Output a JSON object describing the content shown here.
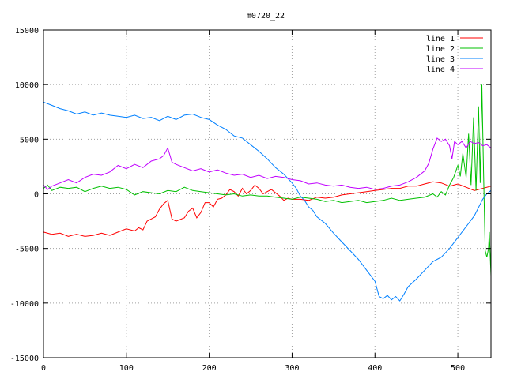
{
  "chart_data": {
    "type": "line",
    "title": "m0720_22",
    "xlabel": "",
    "ylabel": "",
    "xlim": [
      0,
      540
    ],
    "ylim": [
      -15000,
      15000
    ],
    "grid": true,
    "legend_position": "top-right",
    "x_ticks": [
      0,
      100,
      200,
      300,
      400,
      500
    ],
    "x_tick_labels": [
      "0",
      "100",
      "200",
      "300",
      "400",
      "500"
    ],
    "y_ticks": [
      -15000,
      -10000,
      -5000,
      0,
      5000,
      10000,
      15000
    ],
    "y_tick_labels": [
      "-15000",
      "-10000",
      "-5000",
      "0",
      "5000",
      "10000",
      "15000"
    ],
    "series": [
      {
        "name": "line 1",
        "color": "#ff0000",
        "points": [
          [
            0,
            -3500
          ],
          [
            10,
            -3700
          ],
          [
            20,
            -3600
          ],
          [
            30,
            -3900
          ],
          [
            40,
            -3700
          ],
          [
            50,
            -3900
          ],
          [
            60,
            -3800
          ],
          [
            70,
            -3600
          ],
          [
            80,
            -3800
          ],
          [
            90,
            -3500
          ],
          [
            100,
            -3200
          ],
          [
            110,
            -3400
          ],
          [
            115,
            -3100
          ],
          [
            120,
            -3300
          ],
          [
            125,
            -2500
          ],
          [
            130,
            -2300
          ],
          [
            135,
            -2100
          ],
          [
            140,
            -1400
          ],
          [
            145,
            -900
          ],
          [
            150,
            -600
          ],
          [
            155,
            -2300
          ],
          [
            160,
            -2500
          ],
          [
            170,
            -2200
          ],
          [
            175,
            -1600
          ],
          [
            180,
            -1300
          ],
          [
            185,
            -2200
          ],
          [
            190,
            -1700
          ],
          [
            195,
            -800
          ],
          [
            200,
            -800
          ],
          [
            205,
            -1200
          ],
          [
            210,
            -500
          ],
          [
            215,
            -400
          ],
          [
            220,
            -100
          ],
          [
            225,
            400
          ],
          [
            230,
            200
          ],
          [
            235,
            -200
          ],
          [
            240,
            500
          ],
          [
            245,
            0
          ],
          [
            250,
            300
          ],
          [
            255,
            800
          ],
          [
            260,
            500
          ],
          [
            265,
            0
          ],
          [
            270,
            200
          ],
          [
            275,
            400
          ],
          [
            280,
            100
          ],
          [
            285,
            -200
          ],
          [
            290,
            -600
          ],
          [
            295,
            -400
          ],
          [
            300,
            -500
          ],
          [
            310,
            -500
          ],
          [
            320,
            -600
          ],
          [
            330,
            -300
          ],
          [
            340,
            -400
          ],
          [
            350,
            -300
          ],
          [
            360,
            -100
          ],
          [
            370,
            0
          ],
          [
            380,
            100
          ],
          [
            390,
            200
          ],
          [
            400,
            300
          ],
          [
            410,
            400
          ],
          [
            420,
            500
          ],
          [
            430,
            500
          ],
          [
            440,
            700
          ],
          [
            450,
            700
          ],
          [
            460,
            900
          ],
          [
            470,
            1100
          ],
          [
            480,
            1000
          ],
          [
            490,
            700
          ],
          [
            500,
            900
          ],
          [
            510,
            600
          ],
          [
            520,
            300
          ],
          [
            530,
            500
          ],
          [
            540,
            700
          ]
        ]
      },
      {
        "name": "line 2",
        "color": "#00c000",
        "points": [
          [
            0,
            500
          ],
          [
            5,
            800
          ],
          [
            10,
            300
          ],
          [
            20,
            600
          ],
          [
            30,
            500
          ],
          [
            40,
            600
          ],
          [
            50,
            200
          ],
          [
            60,
            500
          ],
          [
            70,
            700
          ],
          [
            80,
            500
          ],
          [
            90,
            600
          ],
          [
            100,
            400
          ],
          [
            110,
            -100
          ],
          [
            120,
            200
          ],
          [
            130,
            100
          ],
          [
            140,
            0
          ],
          [
            150,
            300
          ],
          [
            160,
            200
          ],
          [
            170,
            600
          ],
          [
            180,
            300
          ],
          [
            190,
            200
          ],
          [
            200,
            100
          ],
          [
            210,
            0
          ],
          [
            220,
            -100
          ],
          [
            230,
            0
          ],
          [
            240,
            -200
          ],
          [
            250,
            -100
          ],
          [
            260,
            -200
          ],
          [
            270,
            -200
          ],
          [
            280,
            -300
          ],
          [
            290,
            -400
          ],
          [
            300,
            -500
          ],
          [
            310,
            -300
          ],
          [
            320,
            -400
          ],
          [
            330,
            -500
          ],
          [
            340,
            -700
          ],
          [
            350,
            -600
          ],
          [
            360,
            -800
          ],
          [
            370,
            -700
          ],
          [
            380,
            -600
          ],
          [
            390,
            -800
          ],
          [
            400,
            -700
          ],
          [
            410,
            -600
          ],
          [
            420,
            -400
          ],
          [
            430,
            -600
          ],
          [
            440,
            -500
          ],
          [
            450,
            -400
          ],
          [
            460,
            -300
          ],
          [
            470,
            0
          ],
          [
            475,
            -300
          ],
          [
            480,
            200
          ],
          [
            485,
            -100
          ],
          [
            490,
            800
          ],
          [
            495,
            1500
          ],
          [
            500,
            2600
          ],
          [
            503,
            1600
          ],
          [
            506,
            3700
          ],
          [
            510,
            1500
          ],
          [
            513,
            5500
          ],
          [
            516,
            800
          ],
          [
            519,
            7000
          ],
          [
            522,
            300
          ],
          [
            525,
            8000
          ],
          [
            527,
            1000
          ],
          [
            529,
            10000
          ],
          [
            531,
            2000
          ],
          [
            533,
            -5200
          ],
          [
            535,
            -5800
          ],
          [
            537,
            -5000
          ],
          [
            538,
            -3500
          ],
          [
            540,
            -7500
          ]
        ]
      },
      {
        "name": "line 3",
        "color": "#0080ff",
        "points": [
          [
            0,
            8400
          ],
          [
            10,
            8100
          ],
          [
            20,
            7800
          ],
          [
            30,
            7600
          ],
          [
            40,
            7300
          ],
          [
            50,
            7500
          ],
          [
            60,
            7200
          ],
          [
            70,
            7400
          ],
          [
            80,
            7200
          ],
          [
            90,
            7100
          ],
          [
            100,
            7000
          ],
          [
            110,
            7200
          ],
          [
            120,
            6900
          ],
          [
            130,
            7000
          ],
          [
            140,
            6700
          ],
          [
            150,
            7100
          ],
          [
            160,
            6800
          ],
          [
            170,
            7200
          ],
          [
            180,
            7300
          ],
          [
            190,
            7000
          ],
          [
            200,
            6800
          ],
          [
            210,
            6300
          ],
          [
            220,
            5900
          ],
          [
            230,
            5300
          ],
          [
            240,
            5100
          ],
          [
            250,
            4500
          ],
          [
            260,
            3900
          ],
          [
            270,
            3200
          ],
          [
            280,
            2400
          ],
          [
            290,
            1800
          ],
          [
            300,
            1000
          ],
          [
            305,
            500
          ],
          [
            310,
            -200
          ],
          [
            315,
            -600
          ],
          [
            320,
            -1200
          ],
          [
            325,
            -1500
          ],
          [
            330,
            -2100
          ],
          [
            340,
            -2700
          ],
          [
            350,
            -3600
          ],
          [
            360,
            -4400
          ],
          [
            370,
            -5200
          ],
          [
            380,
            -6000
          ],
          [
            390,
            -7000
          ],
          [
            400,
            -8000
          ],
          [
            405,
            -9400
          ],
          [
            410,
            -9600
          ],
          [
            415,
            -9300
          ],
          [
            420,
            -9700
          ],
          [
            425,
            -9400
          ],
          [
            430,
            -9800
          ],
          [
            435,
            -9200
          ],
          [
            440,
            -8500
          ],
          [
            450,
            -7800
          ],
          [
            460,
            -7000
          ],
          [
            470,
            -6200
          ],
          [
            480,
            -5800
          ],
          [
            490,
            -5000
          ],
          [
            500,
            -4000
          ],
          [
            510,
            -3000
          ],
          [
            520,
            -2000
          ],
          [
            530,
            -500
          ],
          [
            535,
            0
          ],
          [
            540,
            300
          ]
        ]
      },
      {
        "name": "line 4",
        "color": "#c000ff",
        "points": [
          [
            0,
            800
          ],
          [
            5,
            400
          ],
          [
            10,
            700
          ],
          [
            20,
            1000
          ],
          [
            30,
            1300
          ],
          [
            40,
            1000
          ],
          [
            50,
            1500
          ],
          [
            60,
            1800
          ],
          [
            70,
            1700
          ],
          [
            80,
            2000
          ],
          [
            90,
            2600
          ],
          [
            100,
            2300
          ],
          [
            110,
            2700
          ],
          [
            120,
            2400
          ],
          [
            130,
            3000
          ],
          [
            140,
            3200
          ],
          [
            145,
            3500
          ],
          [
            150,
            4200
          ],
          [
            155,
            2900
          ],
          [
            160,
            2700
          ],
          [
            170,
            2400
          ],
          [
            180,
            2100
          ],
          [
            190,
            2300
          ],
          [
            200,
            2000
          ],
          [
            210,
            2200
          ],
          [
            220,
            1900
          ],
          [
            230,
            1700
          ],
          [
            240,
            1800
          ],
          [
            250,
            1500
          ],
          [
            260,
            1700
          ],
          [
            270,
            1400
          ],
          [
            280,
            1600
          ],
          [
            290,
            1500
          ],
          [
            300,
            1300
          ],
          [
            310,
            1200
          ],
          [
            320,
            900
          ],
          [
            330,
            1000
          ],
          [
            340,
            800
          ],
          [
            350,
            700
          ],
          [
            360,
            800
          ],
          [
            370,
            600
          ],
          [
            380,
            500
          ],
          [
            390,
            600
          ],
          [
            400,
            400
          ],
          [
            410,
            500
          ],
          [
            420,
            700
          ],
          [
            430,
            800
          ],
          [
            440,
            1100
          ],
          [
            450,
            1500
          ],
          [
            460,
            2100
          ],
          [
            465,
            2800
          ],
          [
            470,
            4100
          ],
          [
            475,
            5100
          ],
          [
            480,
            4800
          ],
          [
            485,
            5000
          ],
          [
            490,
            4400
          ],
          [
            493,
            3200
          ],
          [
            496,
            4800
          ],
          [
            500,
            4500
          ],
          [
            505,
            4800
          ],
          [
            510,
            4200
          ],
          [
            515,
            4800
          ],
          [
            520,
            4600
          ],
          [
            525,
            4700
          ],
          [
            530,
            4400
          ],
          [
            535,
            4500
          ],
          [
            540,
            4200
          ]
        ]
      }
    ]
  }
}
